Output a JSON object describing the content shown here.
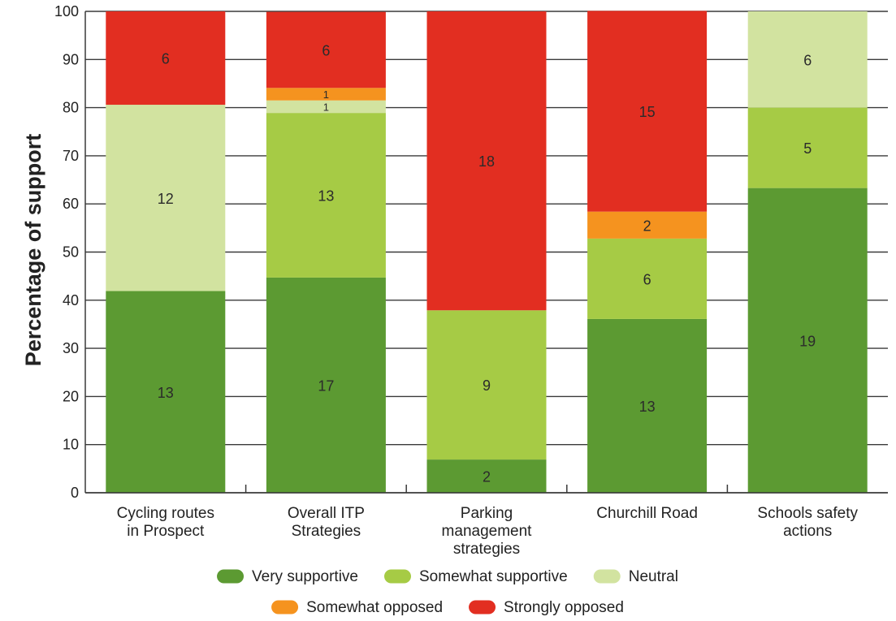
{
  "chart_data": {
    "type": "bar",
    "stacked": true,
    "ylabel": "Percentage of support",
    "ylim": [
      0,
      100
    ],
    "yticks": [
      0,
      10,
      20,
      30,
      40,
      50,
      60,
      70,
      80,
      90,
      100
    ],
    "grid": true,
    "legend_position": "bottom",
    "categories": [
      [
        "Cycling routes",
        "in Prospect"
      ],
      [
        "Overall ITP",
        "Strategies"
      ],
      [
        "Parking",
        "management",
        "strategies"
      ],
      [
        "Churchill Road"
      ],
      [
        "Schools safety",
        "actions"
      ]
    ],
    "series": [
      {
        "name": "Very supportive",
        "color": "#5c9a32",
        "percent": [
          41.9,
          44.7,
          6.9,
          36.1,
          63.3
        ],
        "counts": [
          "13",
          "17",
          "2",
          "13",
          "19"
        ]
      },
      {
        "name": "Somewhat supportive",
        "color": "#a6cb45",
        "percent": [
          0,
          34.2,
          31.0,
          16.7,
          16.7
        ],
        "counts": [
          "",
          "13",
          "9",
          "6",
          "5"
        ]
      },
      {
        "name": "Neutral",
        "color": "#d2e3a0",
        "percent": [
          38.7,
          2.6,
          0,
          0,
          20.0
        ],
        "counts": [
          "12",
          "1",
          "",
          "",
          "6"
        ]
      },
      {
        "name": "Somewhat opposed",
        "color": "#f5931f",
        "percent": [
          0,
          2.6,
          0,
          5.6,
          0
        ],
        "counts": [
          "",
          "1",
          "",
          "2",
          ""
        ]
      },
      {
        "name": "Strongly opposed",
        "color": "#e22e21",
        "percent": [
          19.4,
          15.8,
          62.1,
          41.7,
          0
        ],
        "counts": [
          "6",
          "6",
          "18",
          "15",
          ""
        ]
      }
    ],
    "legend_rows": [
      [
        "Very supportive",
        "Somewhat supportive",
        "Neutral"
      ],
      [
        "Somewhat opposed",
        "Strongly opposed"
      ]
    ]
  }
}
